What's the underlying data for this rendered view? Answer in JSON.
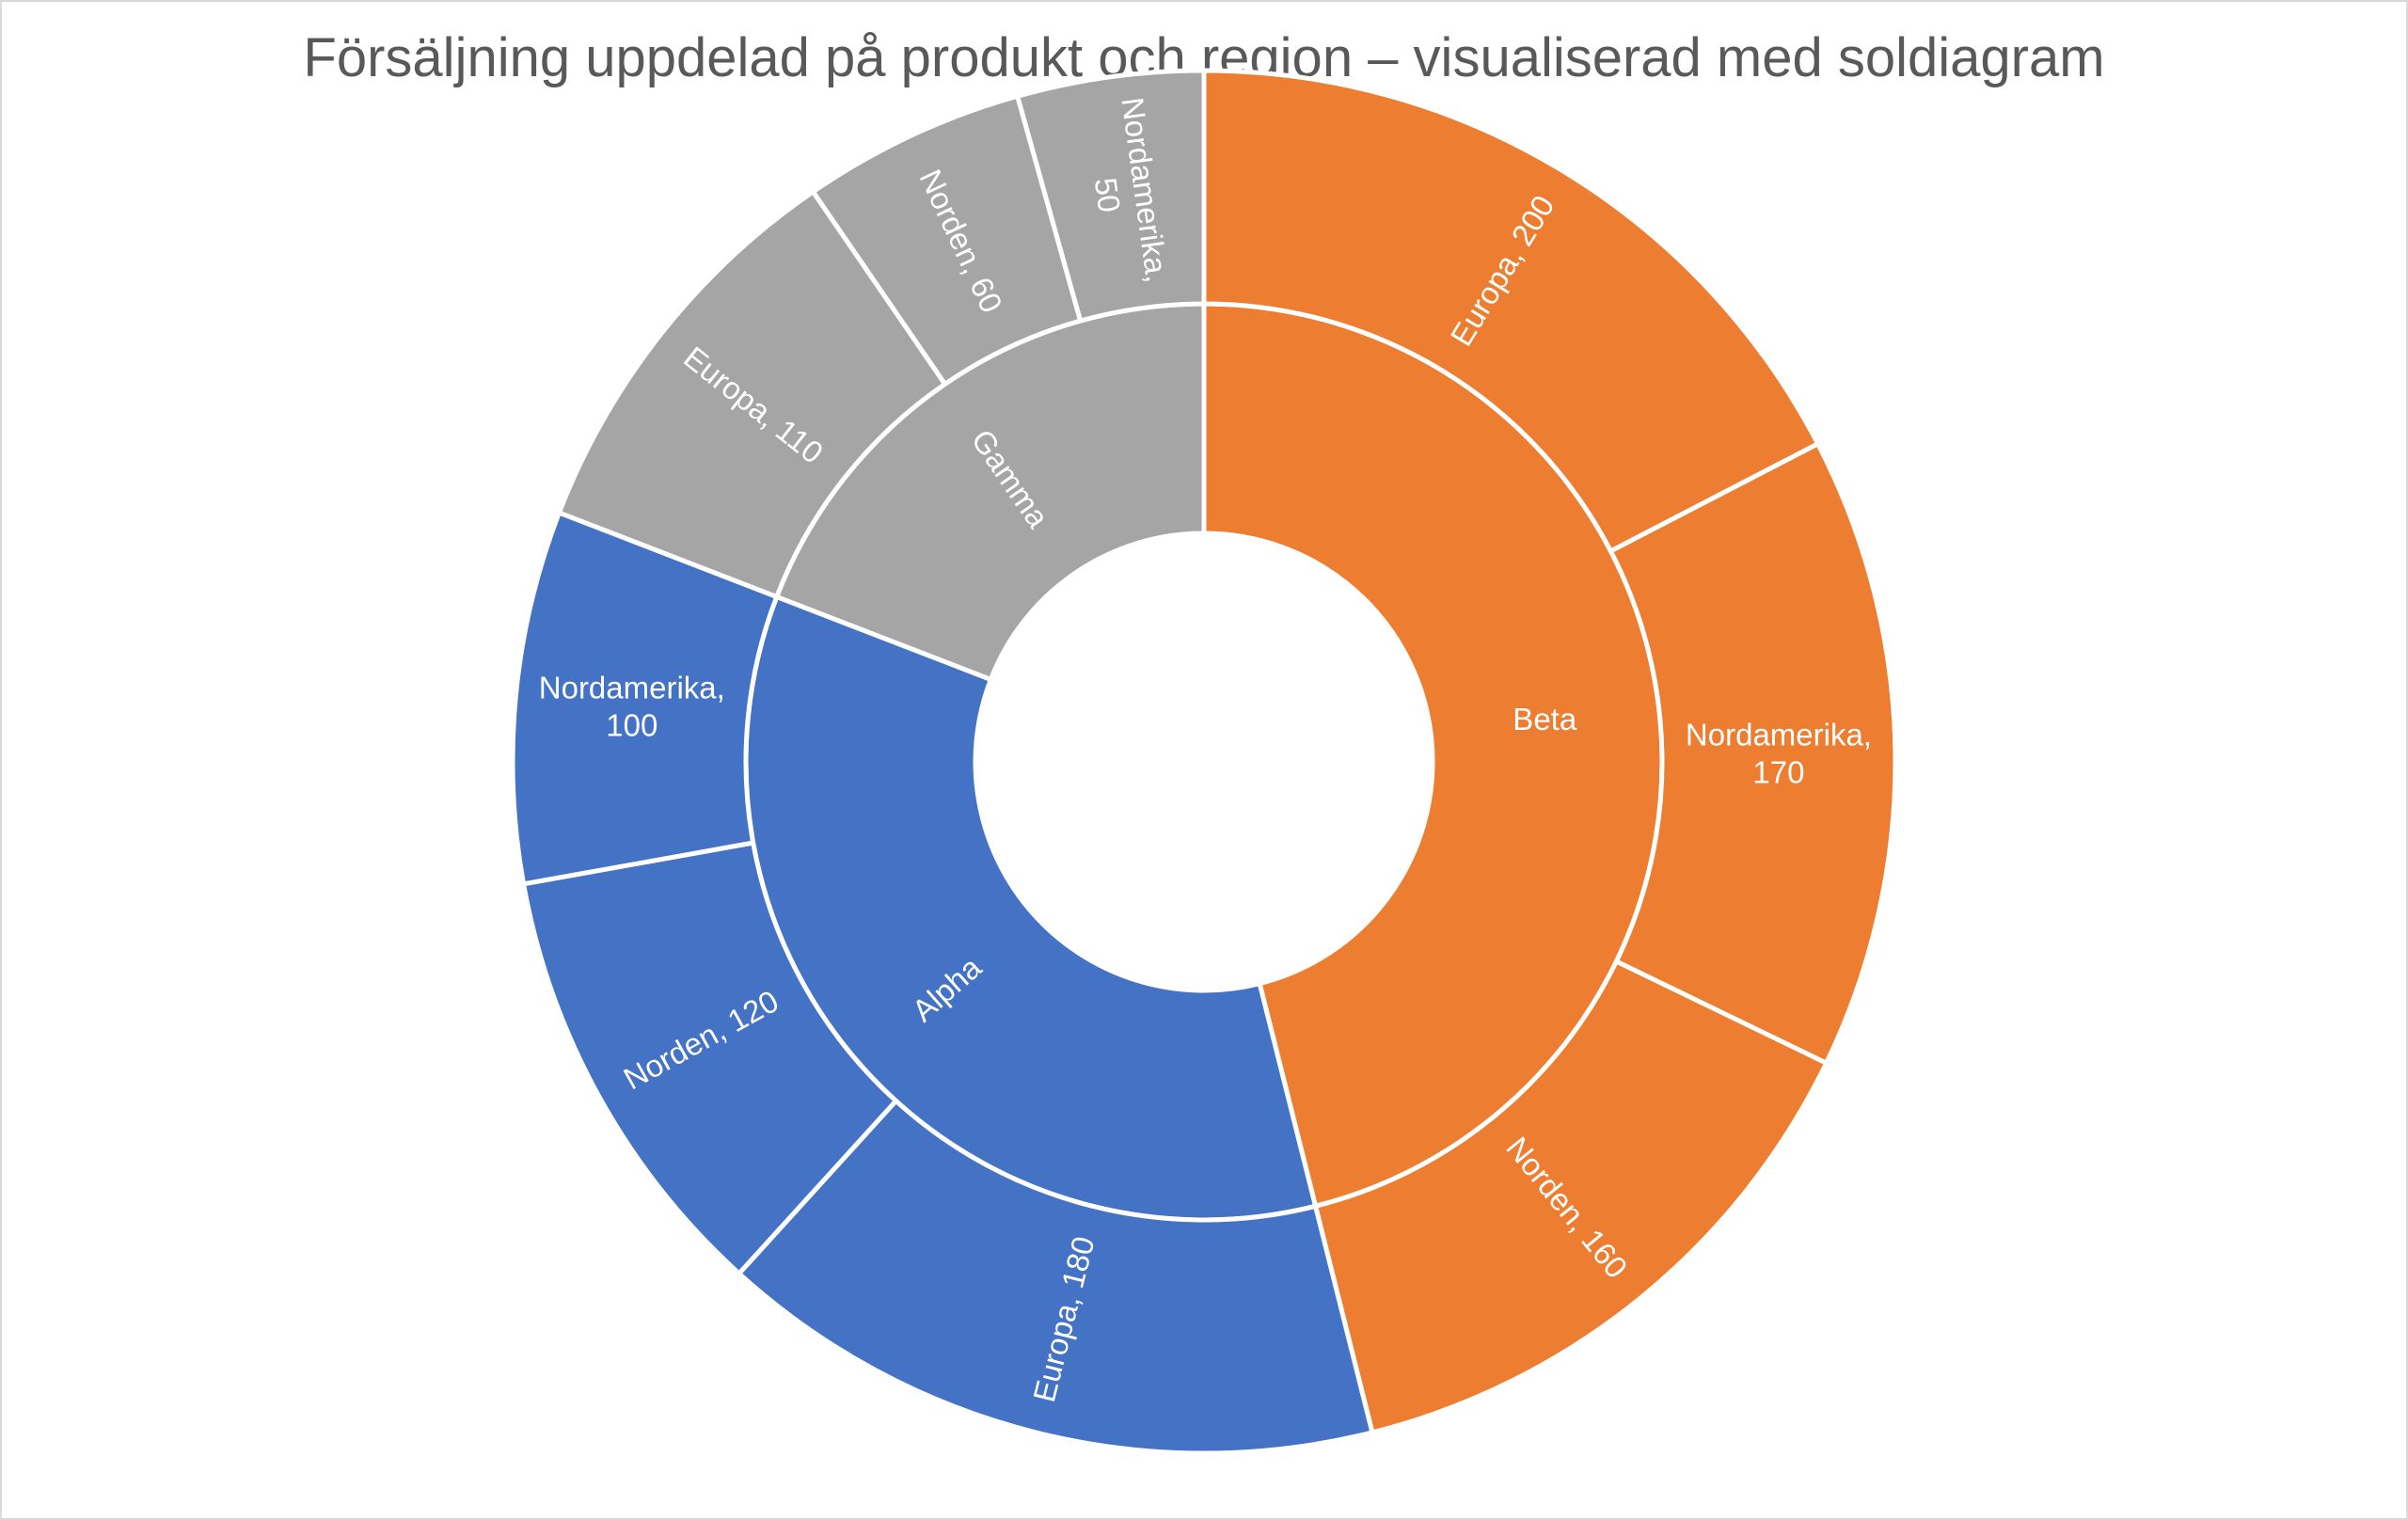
{
  "chart_data": {
    "type": "sunburst",
    "title": "Försäljning uppdelad på produkt och region – visualiserad med soldiagram",
    "total": 1150,
    "start_angle_deg": 0,
    "direction": "clockwise",
    "products": [
      {
        "name": "Beta",
        "value": 530,
        "color": "#ED7D31",
        "label": "Beta",
        "children": [
          {
            "name": "Europa",
            "value": 200,
            "label": "Europa, 200"
          },
          {
            "name": "Nordamerika",
            "value": 170,
            "label_lines": [
              "Nordamerika,",
              "170"
            ]
          },
          {
            "name": "Norden",
            "value": 160,
            "label": "Norden, 160"
          }
        ]
      },
      {
        "name": "Alpha",
        "value": 400,
        "color": "#4472C4",
        "label": "Alpha",
        "children": [
          {
            "name": "Europa",
            "value": 180,
            "label": "Europa, 180"
          },
          {
            "name": "Norden",
            "value": 120,
            "label": "Norden, 120"
          },
          {
            "name": "Nordamerika",
            "value": 100,
            "label_lines": [
              "Nordamerika,",
              "100"
            ]
          }
        ]
      },
      {
        "name": "Gamma",
        "value": 220,
        "color": "#A5A5A5",
        "label": "Gamma",
        "children": [
          {
            "name": "Europa",
            "value": 110,
            "label": "Europa, 110"
          },
          {
            "name": "Norden",
            "value": 60,
            "label": "Norden, 60"
          },
          {
            "name": "Nordamerika",
            "value": 50,
            "label_lines": [
              "Nordamerika,",
              "50"
            ]
          }
        ]
      }
    ]
  }
}
